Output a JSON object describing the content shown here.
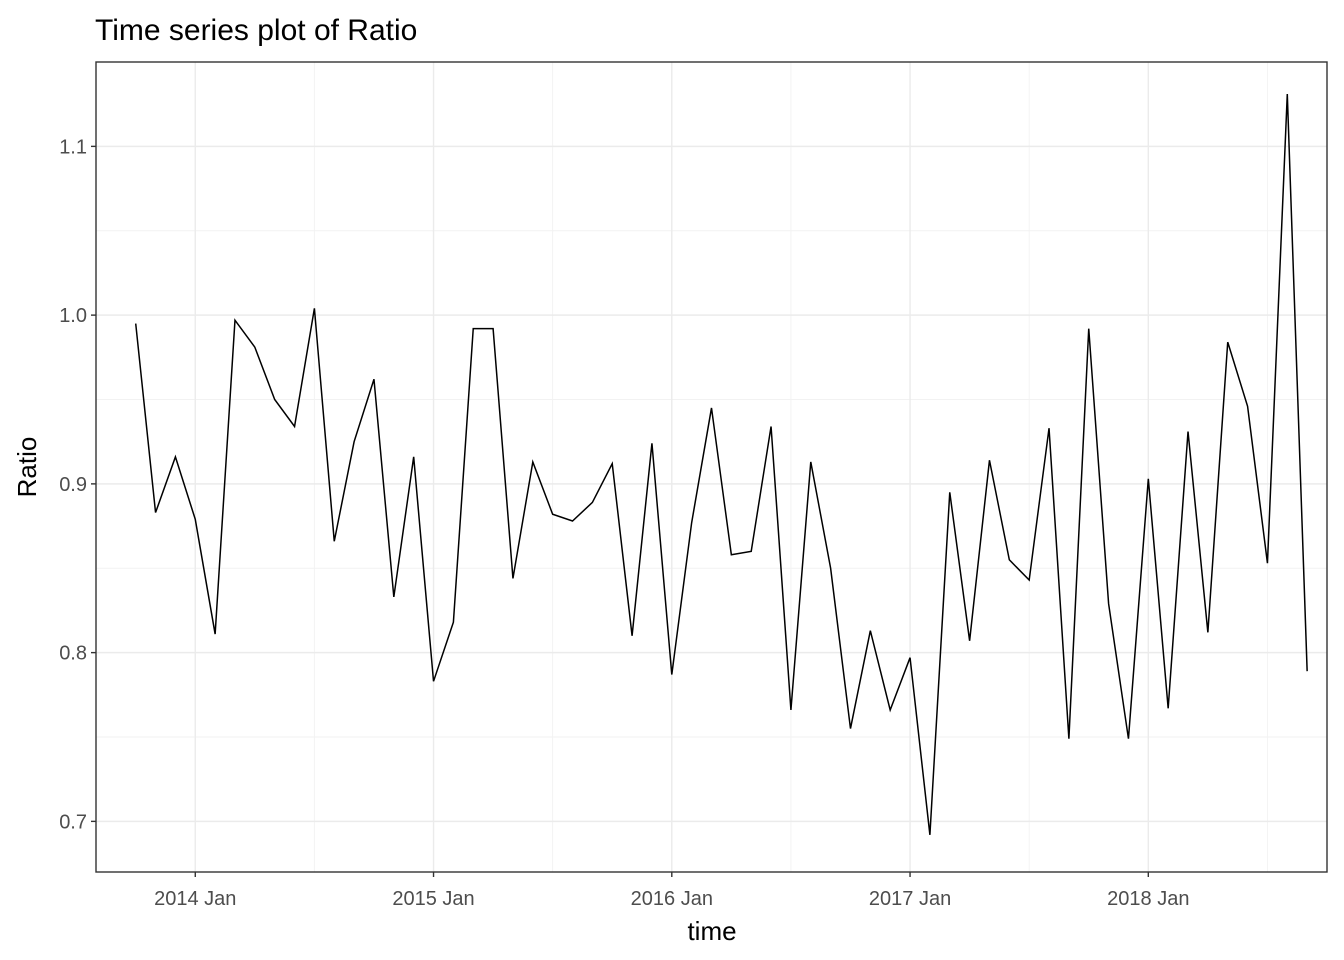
{
  "chart_data": {
    "type": "line",
    "title": "Time series plot of Ratio",
    "xlabel": "time",
    "ylabel": "Ratio",
    "x_ticks": [
      "2014 Jan",
      "2015 Jan",
      "2016 Jan",
      "2017 Jan",
      "2018 Jan"
    ],
    "y_ticks": [
      "0.7",
      "0.8",
      "0.9",
      "1.0",
      "1.1"
    ],
    "y_tick_values": [
      0.7,
      0.8,
      0.9,
      1.0,
      1.1
    ],
    "ylim": [
      0.67,
      1.15
    ],
    "xlim": [
      "2013-08",
      "2018-10"
    ],
    "grid": true,
    "series": [
      {
        "x": [
          "2013-10",
          "2013-11",
          "2013-12",
          "2014-01",
          "2014-02",
          "2014-03",
          "2014-04",
          "2014-05",
          "2014-06",
          "2014-07",
          "2014-08",
          "2014-09",
          "2014-10",
          "2014-11",
          "2014-12",
          "2015-01",
          "2015-02",
          "2015-03",
          "2015-04",
          "2015-05",
          "2015-06",
          "2015-07",
          "2015-08",
          "2015-09",
          "2015-10",
          "2015-11",
          "2015-12",
          "2016-01",
          "2016-02",
          "2016-03",
          "2016-04",
          "2016-05",
          "2016-06",
          "2016-07",
          "2016-08",
          "2016-09",
          "2016-10",
          "2016-11",
          "2016-12",
          "2017-01",
          "2017-02",
          "2017-03",
          "2017-04",
          "2017-05",
          "2017-06",
          "2017-07",
          "2017-08",
          "2017-09",
          "2017-10",
          "2017-11",
          "2017-12",
          "2018-01",
          "2018-02",
          "2018-03",
          "2018-04",
          "2018-05",
          "2018-06",
          "2018-07",
          "2018-08",
          "2018-09"
        ],
        "values": [
          0.995,
          0.883,
          0.916,
          0.879,
          0.811,
          0.997,
          0.981,
          0.95,
          0.934,
          1.004,
          0.866,
          0.925,
          0.962,
          0.833,
          0.916,
          0.783,
          0.818,
          0.992,
          0.992,
          0.844,
          0.913,
          0.882,
          0.878,
          0.889,
          0.912,
          0.81,
          0.924,
          0.787,
          0.877,
          0.945,
          0.858,
          0.86,
          0.934,
          0.766,
          0.913,
          0.85,
          0.755,
          0.813,
          0.766,
          0.797,
          0.692,
          0.895,
          0.807,
          0.914,
          0.855,
          0.843,
          0.933,
          0.749,
          0.992,
          0.829,
          0.749,
          0.903,
          0.767,
          0.931,
          0.812,
          0.984,
          0.946,
          0.853,
          1.131,
          0.789
        ]
      }
    ]
  }
}
